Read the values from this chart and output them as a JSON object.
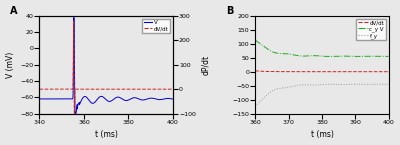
{
  "panel_A": {
    "title": "A",
    "xlabel": "t (ms)",
    "ylabel_left": "V (mV)",
    "ylabel_right": "dP/dt",
    "xlim": [
      340,
      400
    ],
    "ylim_left": [
      -80,
      40
    ],
    "ylim_right": [
      -100,
      300
    ],
    "yticks_left": [
      -80,
      -60,
      -40,
      -20,
      0,
      20,
      40
    ],
    "yticks_right": [
      -100,
      0,
      100,
      200,
      300
    ],
    "xticks": [
      340,
      360,
      380,
      400
    ],
    "legend": [
      "V",
      "dV/dt"
    ],
    "V_color": "#0000cc",
    "dVdt_color": "#cc2222"
  },
  "panel_B": {
    "title": "B",
    "xlabel": "t (ms)",
    "xlim": [
      360,
      400
    ],
    "ylim": [
      -150,
      200
    ],
    "yticks": [
      -150,
      -100,
      -50,
      0,
      50,
      100,
      150,
      200
    ],
    "xticks": [
      360,
      370,
      380,
      390,
      400
    ],
    "legend": [
      "dV/dt",
      "c_y V",
      "f_y"
    ],
    "dVdt_color": "#cc2222",
    "cyV_color": "#22aa22",
    "fy_color": "#999999"
  },
  "fig_facecolor": "#e8e8e8",
  "axes_facecolor": "#e8e8e8"
}
